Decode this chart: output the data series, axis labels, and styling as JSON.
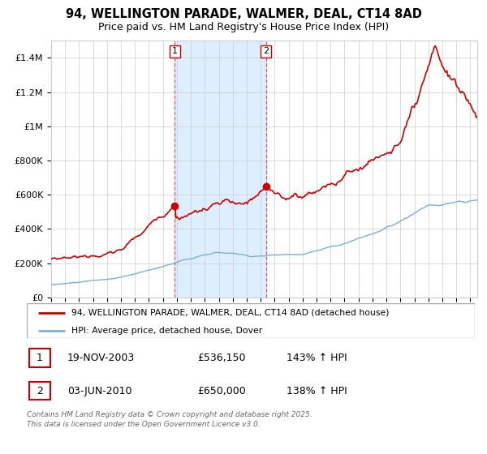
{
  "title_line1": "94, WELLINGTON PARADE, WALMER, DEAL, CT14 8AD",
  "title_line2": "Price paid vs. HM Land Registry's House Price Index (HPI)",
  "ylim": [
    0,
    1500000
  ],
  "yticks": [
    0,
    200000,
    400000,
    600000,
    800000,
    1000000,
    1200000,
    1400000
  ],
  "ytick_labels": [
    "£0",
    "£200K",
    "£400K",
    "£600K",
    "£800K",
    "£1M",
    "£1.2M",
    "£1.4M"
  ],
  "property_color": "#cc0000",
  "hpi_color": "#7ab0d4",
  "shade_color": "#ddeeff",
  "dashed_color": "#cc6666",
  "legend_property": "94, WELLINGTON PARADE, WALMER, DEAL, CT14 8AD (detached house)",
  "legend_hpi": "HPI: Average price, detached house, Dover",
  "table_row1": [
    "1",
    "19-NOV-2003",
    "£536,150",
    "143% ↑ HPI"
  ],
  "table_row2": [
    "2",
    "03-JUN-2010",
    "£650,000",
    "138% ↑ HPI"
  ],
  "footer": "Contains HM Land Registry data © Crown copyright and database right 2025.\nThis data is licensed under the Open Government Licence v3.0.",
  "grid_color": "#cccccc",
  "background_color": "#ffffff",
  "sale1_year": 2003.88,
  "sale2_year": 2010.42,
  "sale1_price": 536150,
  "sale2_price": 650000,
  "xstart": 1995,
  "xend": 2025.5
}
